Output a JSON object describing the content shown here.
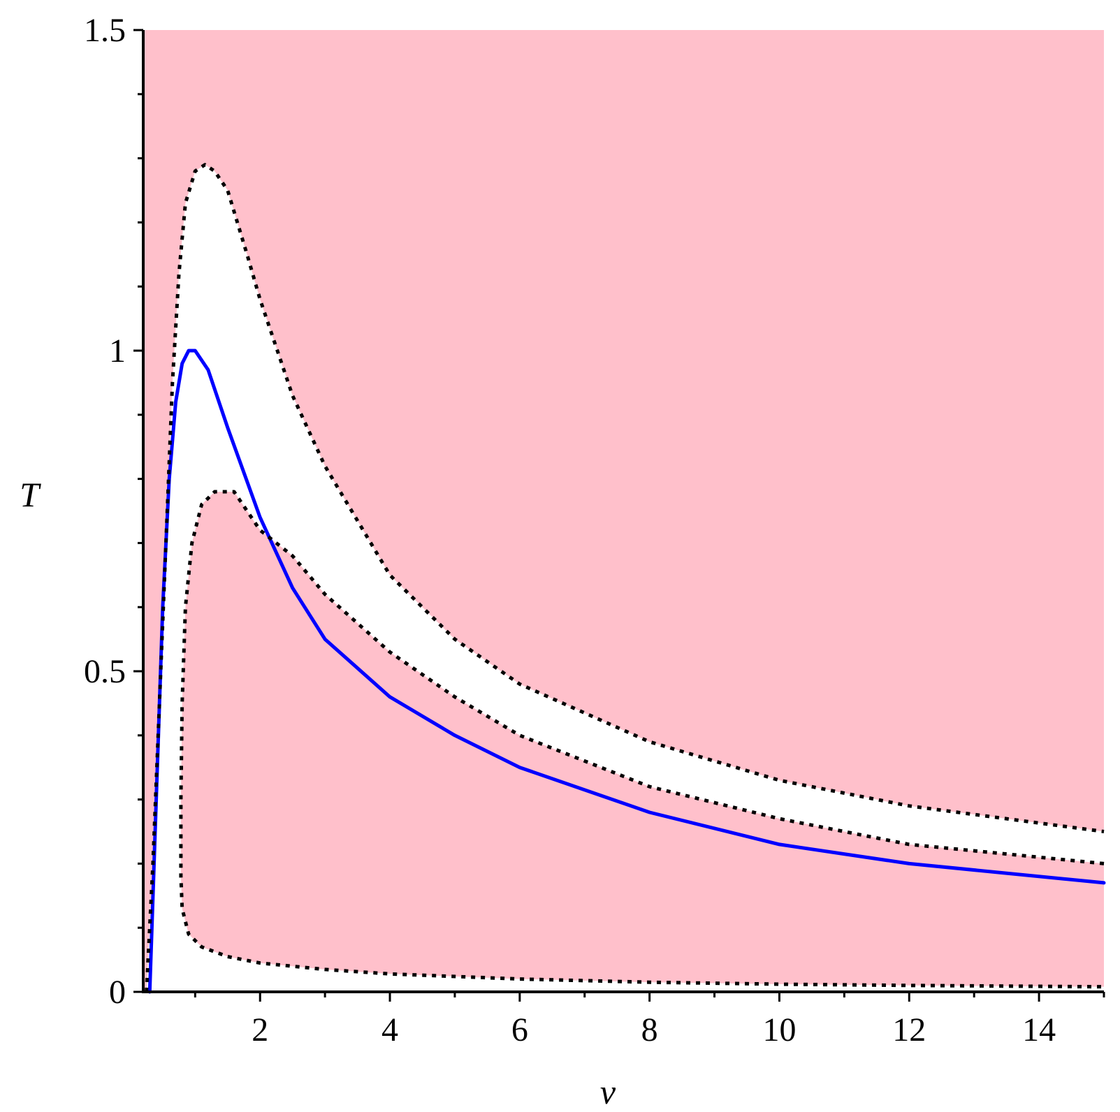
{
  "chart_data": {
    "type": "line",
    "xlabel": "v",
    "ylabel": "T",
    "xlim": [
      0.2,
      15
    ],
    "ylim": [
      0,
      1.5
    ],
    "x_ticks": [
      2,
      4,
      6,
      8,
      10,
      12,
      14
    ],
    "x_tick_labels": [
      "2",
      "4",
      "6",
      "8",
      "10",
      "12",
      "14"
    ],
    "y_ticks": [
      0,
      0.5,
      1,
      1.5
    ],
    "y_tick_labels": [
      "0",
      "0.5",
      "1",
      "1.5"
    ],
    "grid": false,
    "legend": "none",
    "colors": {
      "region_fill": "#ffc0cb",
      "solid_curve": "#0000ff",
      "dotted_curve": "#000000"
    },
    "shaded_regions": [
      {
        "description_free": true,
        "color": "#ffc0cb",
        "bounds": "above upper dotted curve"
      },
      {
        "description_free": true,
        "color": "#ffc0cb",
        "bounds": "between lower dotted branches"
      }
    ],
    "series": [
      {
        "style": "solid",
        "color": "#0000ff",
        "x": [
          0.3,
          0.4,
          0.5,
          0.6,
          0.7,
          0.8,
          0.9,
          1.0,
          1.2,
          1.5,
          2.0,
          2.5,
          3.0,
          4.0,
          5.0,
          6.0,
          8.0,
          10.0,
          12.0,
          15.0
        ],
        "y": [
          0.0,
          0.3,
          0.6,
          0.8,
          0.92,
          0.98,
          1.0,
          1.0,
          0.97,
          0.88,
          0.74,
          0.63,
          0.55,
          0.46,
          0.4,
          0.35,
          0.28,
          0.23,
          0.2,
          0.17
        ]
      },
      {
        "style": "dotted",
        "color": "#000000",
        "x": [
          0.25,
          0.35,
          0.45,
          0.55,
          0.65,
          0.75,
          0.85,
          1.0,
          1.15,
          1.3,
          1.5,
          1.8,
          2.0,
          2.5,
          3.0,
          4.0,
          5.0,
          6.0,
          8.0,
          10.0,
          12.0,
          15.0
        ],
        "y": [
          0.0,
          0.2,
          0.45,
          0.7,
          0.95,
          1.12,
          1.23,
          1.28,
          1.29,
          1.28,
          1.25,
          1.15,
          1.08,
          0.93,
          0.82,
          0.65,
          0.55,
          0.48,
          0.39,
          0.33,
          0.29,
          0.25
        ]
      },
      {
        "style": "dotted",
        "color": "#000000",
        "x": [
          15.0,
          12.0,
          10.0,
          8.0,
          6.0,
          5.0,
          4.0,
          3.0,
          2.5,
          2.0,
          1.6,
          1.3,
          1.1,
          0.95,
          0.85,
          0.8,
          0.78,
          0.78,
          0.8,
          0.9,
          1.1,
          1.5,
          2.0,
          3.0,
          4.0,
          6.0,
          8.0,
          10.0,
          12.0,
          15.0
        ],
        "y": [
          0.2,
          0.23,
          0.27,
          0.32,
          0.4,
          0.46,
          0.53,
          0.62,
          0.68,
          0.72,
          0.78,
          0.78,
          0.76,
          0.7,
          0.6,
          0.45,
          0.3,
          0.18,
          0.13,
          0.09,
          0.07,
          0.055,
          0.045,
          0.035,
          0.028,
          0.02,
          0.015,
          0.012,
          0.01,
          0.008
        ]
      }
    ]
  }
}
